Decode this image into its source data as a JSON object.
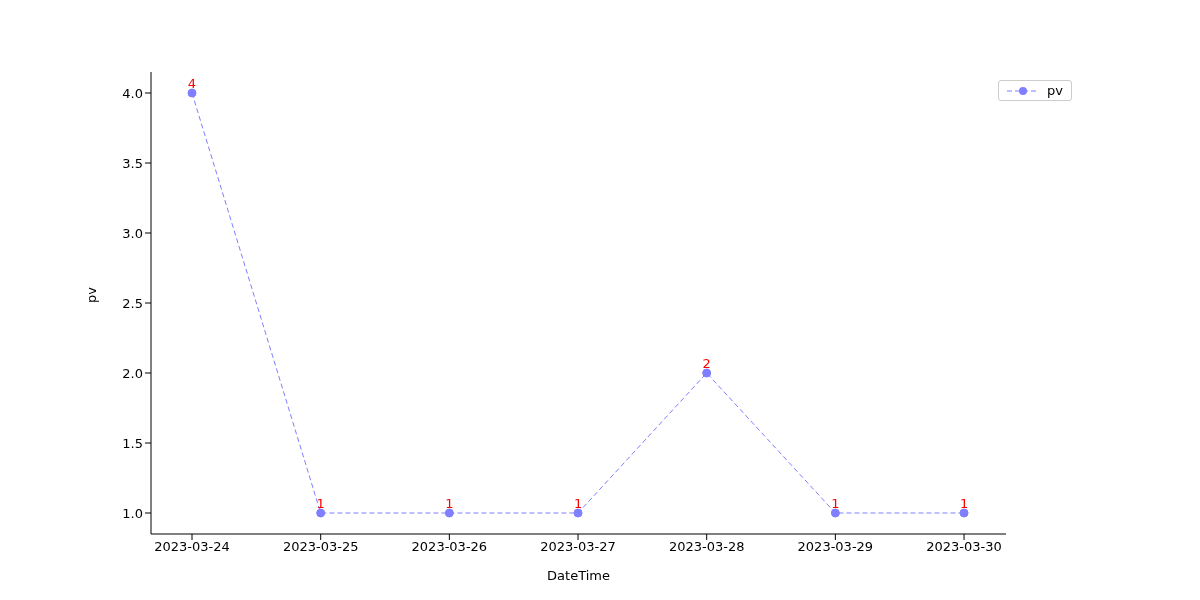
{
  "chart_data": {
    "type": "line",
    "xlabel": "DateTime",
    "ylabel": "pv",
    "categories": [
      "2023-03-24",
      "2023-03-25",
      "2023-03-26",
      "2023-03-27",
      "2023-03-28",
      "2023-03-29",
      "2023-03-30"
    ],
    "series": [
      {
        "name": "pv",
        "color": "#7f7fff",
        "values": [
          4,
          1,
          1,
          1,
          2,
          1,
          1
        ]
      }
    ],
    "ylim": [
      0.85,
      4.15
    ],
    "yticks": [
      {
        "value": 1,
        "label": "1.0"
      },
      {
        "value": 1.5,
        "label": "1.5"
      },
      {
        "value": 2,
        "label": "2.0"
      },
      {
        "value": 2.5,
        "label": "2.5"
      },
      {
        "value": 3,
        "label": "3.0"
      },
      {
        "value": 3.5,
        "label": "3.5"
      },
      {
        "value": 4,
        "label": "4.0"
      }
    ],
    "data_labels": true,
    "legend": "top right",
    "marker": "circle",
    "line_style": "dashed",
    "grid": false
  }
}
